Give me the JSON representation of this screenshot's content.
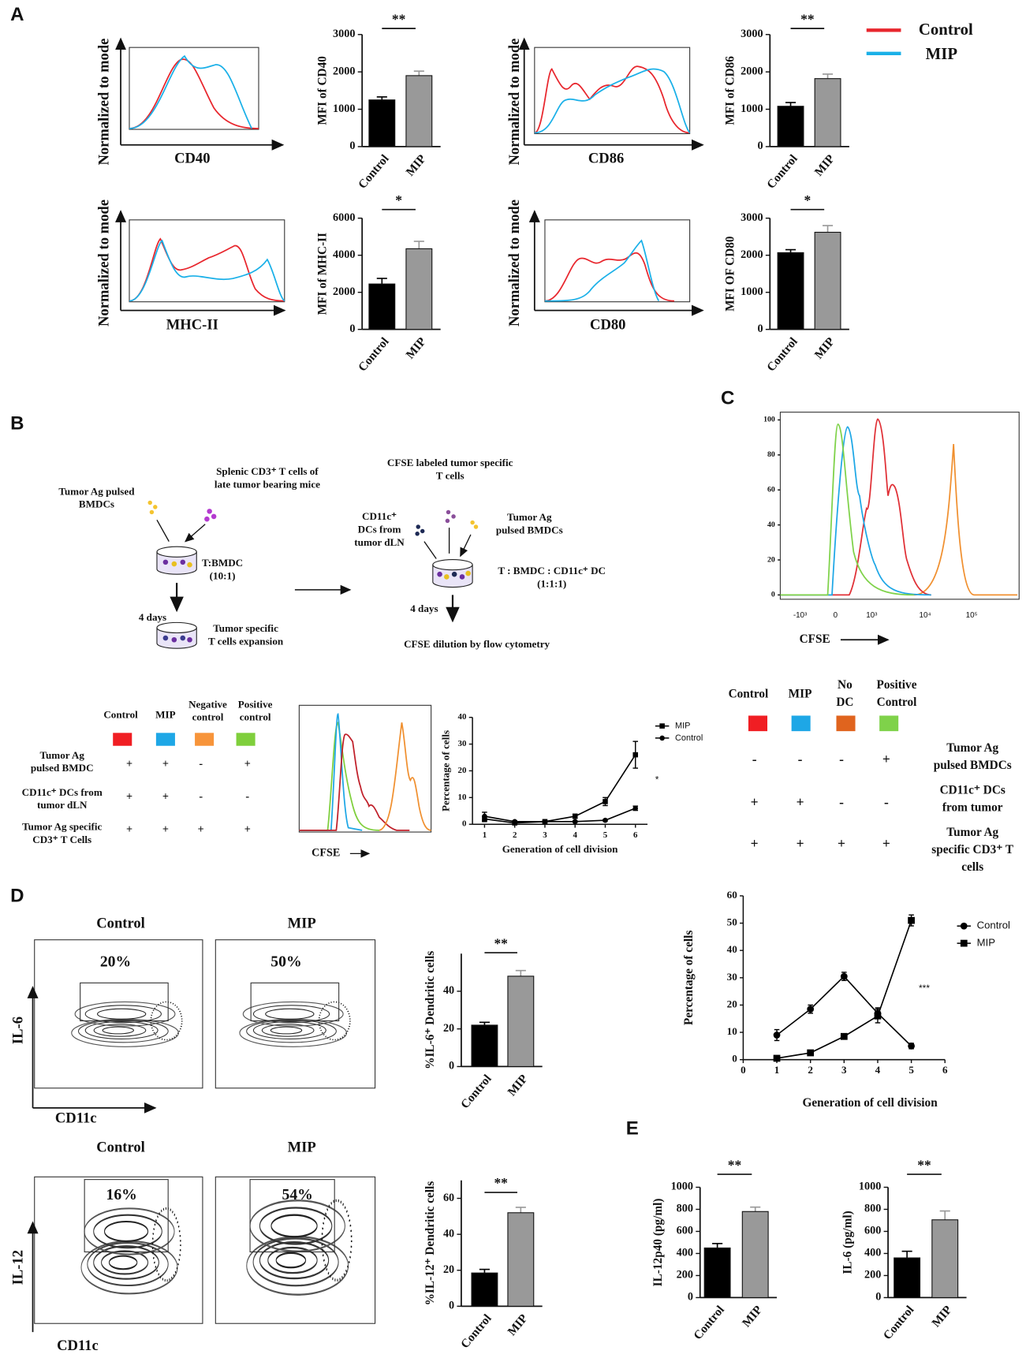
{
  "panel_labels": [
    "A",
    "B",
    "C",
    "D",
    "E"
  ],
  "legend": {
    "items": [
      {
        "name": "Control",
        "color": "#e8262d"
      },
      {
        "name": "MIP",
        "color": "#1ab0e8"
      }
    ]
  },
  "flow_plots_a": [
    {
      "ylabel": "Normalized to mode",
      "xlabel": "CD40"
    },
    {
      "ylabel": "Normalized to mode",
      "xlabel": "CD86"
    },
    {
      "ylabel": "Normalized to mode",
      "xlabel": "MHC-II"
    },
    {
      "ylabel": "Normalized to mode",
      "xlabel": "CD80"
    }
  ],
  "diagram": {
    "bmdc_left": [
      "Tumor Ag pulsed",
      "BMDCs"
    ],
    "splenic": [
      "Splenic CD3⁺ T cells of",
      "late tumor bearing mice"
    ],
    "ratio1": [
      "T:BMDC",
      "(10:1)"
    ],
    "days1": "4 days",
    "expansion": [
      "Tumor specific",
      "T cells expansion"
    ],
    "cfse_labeled": [
      "CFSE labeled tumor specific",
      "T cells"
    ],
    "dcs": [
      "CD11c⁺",
      "DCs from",
      "tumor dLN"
    ],
    "bmdc_right": [
      "Tumor Ag",
      "pulsed BMDCs"
    ],
    "ratio2": [
      "T : BMDC : CD11c⁺ DC",
      "(1:1:1)"
    ],
    "days2": "4 days",
    "readout": "CFSE dilution by flow cytometry"
  },
  "table_b": {
    "columns": [
      {
        "label": [
          "Control"
        ],
        "color": "#f01e23"
      },
      {
        "label": [
          "MIP"
        ],
        "color": "#1ea7e6"
      },
      {
        "label": [
          "Negative",
          "control"
        ],
        "color": "#f7943a"
      },
      {
        "label": [
          "Positive",
          "control"
        ],
        "color": "#7fcf3c"
      }
    ],
    "rows": [
      {
        "label": [
          "Tumor Ag",
          "pulsed BMDC"
        ],
        "cells": [
          "+",
          "+",
          "-",
          "+"
        ]
      },
      {
        "label": [
          "CD11c⁺ DCs from",
          "tumor dLN"
        ],
        "cells": [
          "+",
          "+",
          "-",
          "-"
        ]
      },
      {
        "label": [
          "Tumor Ag specific",
          "CD3⁺ T Cells"
        ],
        "cells": [
          "+",
          "+",
          "+",
          "+"
        ]
      }
    ]
  },
  "cfse_small": {
    "xlabel": "CFSE"
  },
  "table_c": {
    "columns": [
      {
        "label": [
          "Control"
        ],
        "color": "#f01e23"
      },
      {
        "label": [
          "MIP"
        ],
        "color": "#1ea7e6"
      },
      {
        "label": [
          "No",
          "DC"
        ],
        "color": "#e0641e"
      },
      {
        "label": [
          "Positive",
          "Control"
        ],
        "color": "#7fd24a"
      }
    ],
    "rows": [
      {
        "label": [
          "Tumor  Ag",
          "pulsed BMDCs"
        ],
        "cells": [
          "-",
          "-",
          "-",
          "+"
        ]
      },
      {
        "label": [
          "CD11c⁺ DCs",
          "from tumor"
        ],
        "cells": [
          "+",
          "+",
          "-",
          "-"
        ]
      },
      {
        "label": [
          "Tumor Ag",
          "specific CD3⁺ T",
          "cells"
        ],
        "cells": [
          "+",
          "+",
          "+",
          "+"
        ]
      }
    ]
  },
  "flow_plots_d": [
    {
      "ylabel": "IL-6",
      "xlabel": "CD11c",
      "plots": [
        {
          "title": "Control",
          "percent": "20%"
        },
        {
          "title": "MIP",
          "percent": "50%"
        }
      ]
    },
    {
      "ylabel": "IL-12",
      "xlabel": "CD11c",
      "plots": [
        {
          "title": "Control",
          "percent": "16%"
        },
        {
          "title": "MIP",
          "percent": "54%"
        }
      ]
    }
  ],
  "chart_data": [
    {
      "type": "bar",
      "ylabel": "MFI of CD40",
      "categories": [
        "Control",
        "MIP"
      ],
      "values": [
        1250,
        1900
      ],
      "errors": [
        80,
        120
      ],
      "colors": [
        "#000000",
        "#999999"
      ],
      "ylim": [
        0,
        3000
      ],
      "yticks": [
        0,
        1000,
        2000,
        3000
      ],
      "significance": "**"
    },
    {
      "type": "bar",
      "ylabel": "MFI of CD86",
      "categories": [
        "Control",
        "MIP"
      ],
      "values": [
        1080,
        1820
      ],
      "errors": [
        100,
        120
      ],
      "colors": [
        "#000000",
        "#999999"
      ],
      "ylim": [
        0,
        3000
      ],
      "yticks": [
        0,
        1000,
        2000,
        3000
      ],
      "significance": "**"
    },
    {
      "type": "bar",
      "ylabel": "MFI of MHC-II",
      "categories": [
        "Control",
        "MIP"
      ],
      "values": [
        2450,
        4350
      ],
      "errors": [
        300,
        400
      ],
      "colors": [
        "#000000",
        "#999999"
      ],
      "ylim": [
        0,
        6000
      ],
      "yticks": [
        0,
        2000,
        4000,
        6000
      ],
      "significance": "*"
    },
    {
      "type": "bar",
      "ylabel": "MFI OF CD80",
      "categories": [
        "Control",
        "MIP"
      ],
      "values": [
        2070,
        2620
      ],
      "errors": [
        80,
        180
      ],
      "colors": [
        "#000000",
        "#999999"
      ],
      "ylim": [
        0,
        3000
      ],
      "yticks": [
        0,
        1000,
        2000,
        3000
      ],
      "significance": "*"
    },
    {
      "type": "bar",
      "ylabel": "%IL-6⁺ Dendritic cells",
      "categories": [
        "Control",
        "MIP"
      ],
      "values": [
        22,
        48
      ],
      "errors": [
        1.5,
        3
      ],
      "colors": [
        "#000000",
        "#999999"
      ],
      "ylim": [
        0,
        60
      ],
      "yticks": [
        0,
        20,
        40
      ],
      "significance": "**"
    },
    {
      "type": "bar",
      "ylabel": "%IL-12⁺ Dendritic cells",
      "categories": [
        "Control",
        "MIP"
      ],
      "values": [
        18.5,
        52
      ],
      "errors": [
        2,
        3
      ],
      "colors": [
        "#000000",
        "#999999"
      ],
      "ylim": [
        0,
        70
      ],
      "yticks": [
        0,
        20,
        40,
        60
      ],
      "significance": "**"
    },
    {
      "type": "bar",
      "ylabel": "IL-12p40 (pg/ml)",
      "categories": [
        "Control",
        "MIP"
      ],
      "values": [
        450,
        780
      ],
      "errors": [
        40,
        40
      ],
      "colors": [
        "#000000",
        "#999999"
      ],
      "ylim": [
        0,
        1000
      ],
      "yticks": [
        0,
        200,
        400,
        600,
        800,
        1000
      ],
      "significance": "**"
    },
    {
      "type": "bar",
      "ylabel": "IL-6 (pg/ml)",
      "categories": [
        "Control",
        "MIP"
      ],
      "values": [
        360,
        705
      ],
      "errors": [
        60,
        80
      ],
      "colors": [
        "#000000",
        "#999999"
      ],
      "ylim": [
        0,
        1000
      ],
      "yticks": [
        0,
        200,
        400,
        600,
        800,
        1000
      ],
      "significance": "**"
    },
    {
      "type": "line",
      "ylabel": "Percentage of cells",
      "xlabel": "Generation of cell division",
      "x": [
        1,
        2,
        3,
        4,
        5,
        6
      ],
      "xlim": [
        0.6,
        6.4
      ],
      "xticks": [
        1,
        2,
        3,
        4,
        5,
        6
      ],
      "ylim": [
        0,
        40
      ],
      "yticks": [
        0,
        10,
        20,
        30,
        40
      ],
      "annotation": "*",
      "series": [
        {
          "name": "MIP",
          "marker": "square",
          "color": "#000000",
          "values": [
            2,
            0.5,
            1,
            3,
            8.5,
            26
          ],
          "errors": [
            1,
            0.3,
            0.3,
            0.8,
            1.5,
            5
          ]
        },
        {
          "name": "Control",
          "marker": "circle",
          "color": "#000000",
          "values": [
            3,
            1,
            1,
            1,
            1.5,
            6
          ],
          "errors": [
            1.5,
            0.3,
            0.3,
            0.3,
            0.3,
            0.8
          ]
        }
      ]
    },
    {
      "type": "flow-histogram",
      "xlabel": "CFSE",
      "ylim": [
        0,
        100
      ],
      "yticks": [
        0,
        20,
        40,
        60,
        80,
        100
      ],
      "xtick_labels": [
        "-10³",
        "0",
        "10³",
        "10⁴",
        "10⁵"
      ]
    },
    {
      "type": "line",
      "ylabel": "Percentage of cells",
      "xlabel": "Generation of cell division",
      "x": [
        1,
        2,
        3,
        4,
        5
      ],
      "xlim": [
        0,
        6
      ],
      "xticks": [
        0,
        1,
        2,
        3,
        4,
        5,
        6
      ],
      "ylim": [
        0,
        60
      ],
      "yticks": [
        0,
        10,
        20,
        30,
        40,
        50,
        60
      ],
      "annotation": "***",
      "series": [
        {
          "name": "Control",
          "marker": "circle",
          "color": "#000000",
          "values": [
            9,
            18.5,
            30.5,
            17,
            5
          ],
          "errors": [
            2,
            1.5,
            1.5,
            2,
            1
          ]
        },
        {
          "name": "MIP",
          "marker": "square",
          "color": "#000000",
          "values": [
            0.5,
            2.5,
            8.5,
            16,
            51
          ],
          "errors": [
            0.3,
            0.5,
            1,
            2.5,
            2
          ]
        }
      ]
    }
  ]
}
